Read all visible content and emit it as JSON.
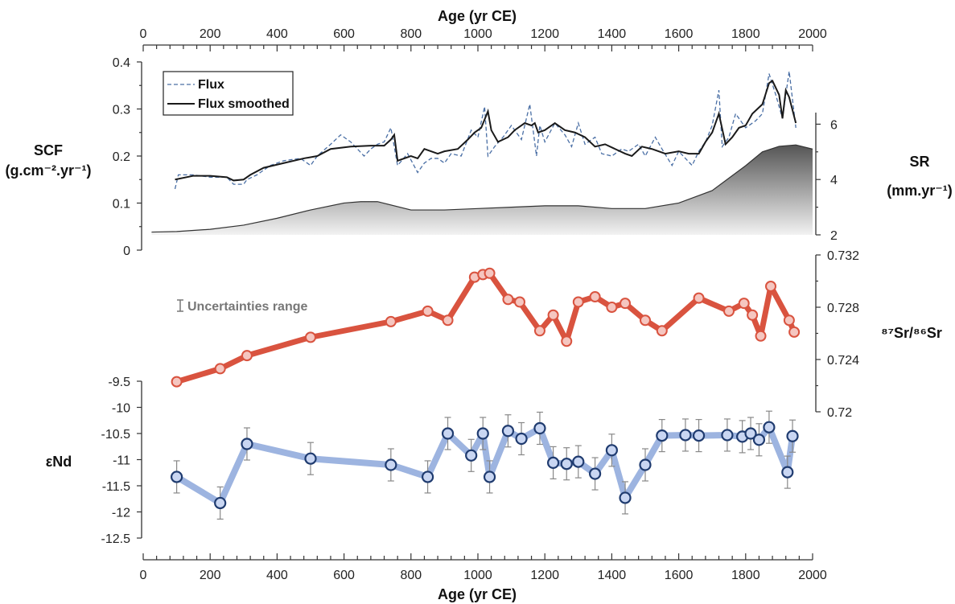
{
  "colors": {
    "flux": "#4a6fa5",
    "flux_smoothed": "#1a1a1a",
    "sr_fill_dark": "#555555",
    "sr_fill_light": "#f2f2f2",
    "sr_isotope": "#d9533f",
    "sr_marker_fill": "#f5c6c0",
    "nd_line": "#9db4e0",
    "nd_marker_stroke": "#1f3b6f",
    "nd_marker_fill": "#c9d6f2",
    "error_bar": "#888888",
    "uncertainty_text": "#777777"
  },
  "x_axis_top": {
    "label": "Age (yr CE)",
    "range": [
      0,
      2000
    ],
    "ticks": [
      "0",
      "200",
      "400",
      "600",
      "800",
      "1000",
      "1200",
      "1400",
      "1600",
      "1800",
      "2000"
    ]
  },
  "x_axis_bottom": {
    "label": "Age (yr CE)",
    "range": [
      0,
      2000
    ],
    "ticks": [
      "0",
      "200",
      "400",
      "600",
      "800",
      "1000",
      "1200",
      "1400",
      "1600",
      "1800",
      "2000"
    ]
  },
  "uncertainty_label": "Uncertainties range",
  "chart_data": [
    {
      "type": "line",
      "name": "scf_panel",
      "ylabel_line1": "SCF",
      "ylabel_line2": "(g.cm⁻².yr⁻¹)",
      "ylim": [
        0,
        0.4
      ],
      "yticks": [
        "0",
        "0.1",
        "0.2",
        "0.3",
        "0.4"
      ],
      "legend_placement": "top-left",
      "series": [
        {
          "name": "Flux",
          "style": "dashed",
          "x": [
            95,
            105,
            150,
            200,
            250,
            270,
            300,
            310,
            340,
            380,
            420,
            470,
            500,
            520,
            560,
            590,
            620,
            660,
            680,
            700,
            720,
            740,
            760,
            790,
            820,
            840,
            860,
            880,
            900,
            920,
            950,
            980,
            1000,
            1020,
            1030,
            1050,
            1075,
            1100,
            1130,
            1155,
            1175,
            1185,
            1200,
            1230,
            1260,
            1280,
            1300,
            1320,
            1350,
            1370,
            1400,
            1430,
            1450,
            1480,
            1500,
            1530,
            1550,
            1580,
            1600,
            1640,
            1660,
            1680,
            1700,
            1720,
            1730,
            1750,
            1770,
            1800,
            1830,
            1850,
            1870,
            1890,
            1910,
            1930,
            1950
          ],
          "values": [
            0.13,
            0.16,
            0.16,
            0.155,
            0.155,
            0.14,
            0.14,
            0.15,
            0.16,
            0.18,
            0.19,
            0.195,
            0.18,
            0.2,
            0.225,
            0.245,
            0.23,
            0.2,
            0.215,
            0.225,
            0.23,
            0.26,
            0.18,
            0.205,
            0.165,
            0.185,
            0.195,
            0.195,
            0.185,
            0.205,
            0.2,
            0.255,
            0.24,
            0.305,
            0.2,
            0.22,
            0.24,
            0.265,
            0.235,
            0.31,
            0.2,
            0.265,
            0.23,
            0.27,
            0.245,
            0.22,
            0.27,
            0.225,
            0.24,
            0.205,
            0.2,
            0.215,
            0.21,
            0.225,
            0.2,
            0.24,
            0.215,
            0.18,
            0.21,
            0.18,
            0.21,
            0.23,
            0.265,
            0.34,
            0.22,
            0.24,
            0.29,
            0.26,
            0.275,
            0.29,
            0.375,
            0.33,
            0.28,
            0.38,
            0.26
          ]
        },
        {
          "name": "Flux  smoothed",
          "style": "solid",
          "x": [
            95,
            150,
            200,
            250,
            270,
            300,
            320,
            360,
            420,
            480,
            520,
            560,
            620,
            680,
            720,
            740,
            750,
            760,
            800,
            820,
            840,
            880,
            900,
            940,
            970,
            990,
            1010,
            1030,
            1040,
            1060,
            1090,
            1110,
            1140,
            1160,
            1170,
            1180,
            1200,
            1230,
            1260,
            1290,
            1320,
            1350,
            1380,
            1410,
            1440,
            1460,
            1490,
            1520,
            1560,
            1600,
            1630,
            1660,
            1680,
            1700,
            1720,
            1740,
            1760,
            1780,
            1800,
            1820,
            1850,
            1870,
            1880,
            1900,
            1910,
            1920,
            1930,
            1950
          ],
          "values": [
            0.15,
            0.158,
            0.158,
            0.155,
            0.148,
            0.15,
            0.16,
            0.175,
            0.185,
            0.195,
            0.2,
            0.215,
            0.22,
            0.222,
            0.222,
            0.235,
            0.245,
            0.19,
            0.2,
            0.195,
            0.215,
            0.205,
            0.21,
            0.215,
            0.235,
            0.25,
            0.26,
            0.295,
            0.255,
            0.23,
            0.24,
            0.255,
            0.27,
            0.265,
            0.27,
            0.25,
            0.255,
            0.27,
            0.255,
            0.25,
            0.24,
            0.22,
            0.225,
            0.215,
            0.205,
            0.2,
            0.22,
            0.215,
            0.205,
            0.21,
            0.205,
            0.205,
            0.23,
            0.25,
            0.29,
            0.225,
            0.24,
            0.26,
            0.265,
            0.29,
            0.31,
            0.355,
            0.36,
            0.33,
            0.28,
            0.34,
            0.325,
            0.27
          ]
        }
      ]
    },
    {
      "type": "area",
      "name": "sr_panel",
      "ylabel_line1": "SR",
      "ylabel_line2": "(mm.yr⁻¹)",
      "ylim": [
        2,
        7
      ],
      "yticks": [
        "2",
        "4",
        "6"
      ],
      "series": [
        {
          "x": [
            25,
            100,
            200,
            300,
            400,
            500,
            600,
            650,
            700,
            800,
            900,
            1000,
            1100,
            1200,
            1300,
            1400,
            1500,
            1600,
            1700,
            1800,
            1850,
            1900,
            1950,
            2000
          ],
          "values": [
            2.1,
            2.12,
            2.2,
            2.35,
            2.6,
            2.9,
            3.15,
            3.2,
            3.2,
            2.9,
            2.9,
            2.95,
            3.0,
            3.05,
            3.05,
            2.95,
            2.95,
            3.15,
            3.6,
            4.5,
            5.0,
            5.2,
            5.25,
            5.1
          ]
        }
      ]
    },
    {
      "type": "line",
      "name": "sr_isotope_panel",
      "ylabel": "⁸⁷Sr/⁸⁶Sr",
      "ylim": [
        0.72,
        0.732
      ],
      "yticks": [
        "0.72",
        "0.724",
        "0.728",
        "0.732"
      ],
      "series": [
        {
          "x": [
            100,
            230,
            310,
            500,
            740,
            850,
            910,
            990,
            1015,
            1035,
            1090,
            1125,
            1185,
            1225,
            1265,
            1300,
            1350,
            1400,
            1440,
            1500,
            1550,
            1660,
            1750,
            1795,
            1820,
            1845,
            1875,
            1930,
            1945
          ],
          "values": [
            0.7223,
            0.7233,
            0.7243,
            0.7257,
            0.7269,
            0.7277,
            0.727,
            0.7303,
            0.7305,
            0.7306,
            0.7286,
            0.7284,
            0.7262,
            0.7274,
            0.7254,
            0.7284,
            0.7288,
            0.728,
            0.7283,
            0.727,
            0.7262,
            0.7287,
            0.7277,
            0.7283,
            0.7274,
            0.7258,
            0.7296,
            0.727,
            0.7261
          ]
        }
      ]
    },
    {
      "type": "line",
      "name": "end_panel",
      "ylabel": "εNd",
      "ylim": [
        -12.5,
        -9.5
      ],
      "yticks": [
        "-9.5",
        "-10",
        "-10.5",
        "-11",
        "-11.5",
        "-12",
        "-12.5"
      ],
      "series": [
        {
          "x": [
            100,
            230,
            310,
            500,
            740,
            850,
            910,
            980,
            1015,
            1035,
            1090,
            1130,
            1185,
            1225,
            1265,
            1300,
            1350,
            1400,
            1440,
            1500,
            1550,
            1620,
            1660,
            1745,
            1790,
            1815,
            1840,
            1870,
            1925,
            1940
          ],
          "values": [
            -11.33,
            -11.83,
            -10.7,
            -10.98,
            -11.1,
            -11.33,
            -10.5,
            -10.92,
            -10.5,
            -11.33,
            -10.45,
            -10.6,
            -10.4,
            -11.06,
            -11.08,
            -11.04,
            -11.27,
            -10.82,
            -11.73,
            -11.1,
            -10.54,
            -10.53,
            -10.54,
            -10.53,
            -10.56,
            -10.5,
            -10.62,
            -10.38,
            -11.24,
            -10.55
          ]
        }
      ]
    }
  ]
}
